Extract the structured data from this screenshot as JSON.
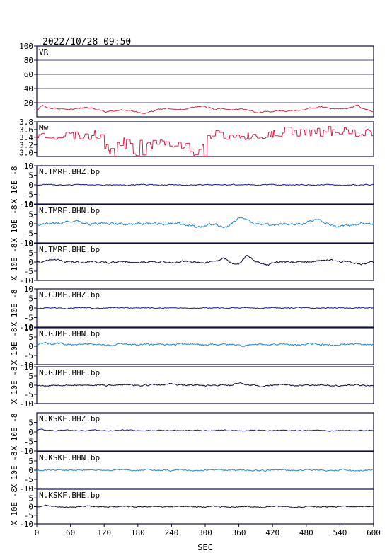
{
  "header": {
    "timestamp": "2022/10/28  09:50"
  },
  "colors": {
    "vr": "#e0204a",
    "mw": "#e0204a",
    "bhz": "#1a1a8c",
    "bhn": "#2a8ad0",
    "bhe": "#111133",
    "frame": "#101040",
    "grid": "#101040",
    "text": "#000000"
  },
  "chart_data": [
    {
      "type": "line",
      "id": "vr",
      "label": "VR",
      "color_key": "vr",
      "ylim": [
        0,
        100
      ],
      "yticks": [
        "100",
        "80",
        "60",
        "40",
        "20"
      ],
      "grid": true,
      "seed": 11,
      "base": 10,
      "amp": 2.5,
      "bumps": [
        [
          10,
          5,
          6
        ],
        [
          330,
          3,
          6
        ],
        [
          570,
          4,
          5
        ]
      ],
      "noise": 1.2
    },
    {
      "type": "line",
      "id": "mw",
      "label": "Mw",
      "color_key": "mw",
      "ylim": [
        2.9,
        3.8
      ],
      "yticks": [
        "3.8",
        "3.6",
        "3.4",
        "3.2",
        "3.0"
      ],
      "grid": false,
      "seed": 23,
      "stepped": true
    },
    {
      "type": "line",
      "id": "tmrf-bhz",
      "label": "N.TMRF.BHZ.bp",
      "color_key": "bhz",
      "ylabel": "X 10E -8",
      "ylim": [
        -10,
        10
      ],
      "yticks": [
        "10",
        "5",
        "0",
        "-5",
        "-10"
      ],
      "seed": 31,
      "amp": 0.35,
      "bumps": []
    },
    {
      "type": "line",
      "id": "tmrf-bhn",
      "label": "N.TMRF.BHN.bp",
      "color_key": "bhn",
      "ylabel": "X 10E -8",
      "ylim": [
        -10,
        10
      ],
      "yticks": [
        "10",
        "5",
        "0",
        "-5",
        "-10"
      ],
      "seed": 37,
      "amp": 0.9,
      "bumps": [
        [
          60,
          1.5,
          18
        ],
        [
          290,
          -1.8,
          18
        ],
        [
          335,
          -1.6,
          12
        ],
        [
          365,
          2.8,
          14
        ],
        [
          420,
          -1.2,
          12
        ],
        [
          500,
          2.6,
          14
        ],
        [
          540,
          -1.6,
          14
        ]
      ]
    },
    {
      "type": "line",
      "id": "tmrf-bhe",
      "label": "N.TMRF.BHE.bp",
      "color_key": "bhe",
      "ylabel": "X 10E -8",
      "ylim": [
        -10,
        10
      ],
      "yticks": [
        "10",
        "5",
        "0",
        "-5",
        "-10"
      ],
      "seed": 41,
      "amp": 0.7,
      "bumps": [
        [
          30,
          1.2,
          14
        ],
        [
          335,
          1.8,
          10
        ],
        [
          350,
          -1.0,
          10
        ],
        [
          375,
          3.0,
          9
        ],
        [
          410,
          -1.2,
          10
        ],
        [
          520,
          1.3,
          14
        ],
        [
          580,
          -1.0,
          12
        ]
      ]
    },
    {
      "type": "line",
      "id": "gjmf-bhz",
      "label": "N.GJMF.BHZ.bp",
      "color_key": "bhz",
      "ylabel": "X 10E -8",
      "ylim": [
        -10,
        10
      ],
      "yticks": [
        "10",
        "5",
        "0",
        "-5",
        "-10"
      ],
      "seed": 43,
      "amp": 0.35,
      "bumps": []
    },
    {
      "type": "line",
      "id": "gjmf-bhn",
      "label": "N.GJMF.BHN.bp",
      "color_key": "bhn",
      "ylabel": "X 10E -8",
      "ylim": [
        -10,
        10
      ],
      "yticks": [
        "10",
        "5",
        "0",
        "-5",
        "-10"
      ],
      "seed": 47,
      "amp": 0.7,
      "offset": 1.0,
      "bumps": [
        [
          15,
          1.0,
          10
        ],
        [
          370,
          -0.9,
          10
        ]
      ]
    },
    {
      "type": "line",
      "id": "gjmf-bhe",
      "label": "N.GJMF.BHE.bp",
      "color_key": "bhe",
      "ylabel": "X 10E -8",
      "ylim": [
        -10,
        10
      ],
      "yticks": [
        "10",
        "5",
        "0",
        "-5",
        "-10"
      ],
      "seed": 53,
      "amp": 0.55,
      "bumps": [
        [
          240,
          1.0,
          10
        ],
        [
          360,
          1.1,
          10
        ],
        [
          400,
          -0.9,
          10
        ]
      ]
    },
    {
      "type": "line",
      "id": "kskf-bhz",
      "label": "N.KSKF.BHZ.bp",
      "color_key": "bhz",
      "ylabel": "X 10E -8",
      "ylim": [
        -10,
        10
      ],
      "yticks": [
        "5",
        "0",
        "-5",
        "-10"
      ],
      "seed": 59,
      "amp": 0.35,
      "offset": 0.8,
      "bumps": [
        [
          10,
          0.5,
          10
        ]
      ]
    },
    {
      "type": "line",
      "id": "kskf-bhn",
      "label": "N.KSKF.BHN.bp",
      "color_key": "bhn",
      "ylabel": "X 10E -8",
      "ylim": [
        -10,
        10
      ],
      "yticks": [
        "5",
        "0",
        "-5",
        "-10"
      ],
      "seed": 61,
      "amp": 0.55,
      "bumps": []
    },
    {
      "type": "line",
      "id": "kskf-bhe",
      "label": "N.KSKF.BHE.bp",
      "color_key": "bhe",
      "ylabel": "X 10E -8",
      "ylim": [
        -10,
        10
      ],
      "yticks": [
        "5",
        "0",
        "-5",
        "-10"
      ],
      "seed": 67,
      "amp": 0.45,
      "bumps": [
        [
          15,
          0.8,
          10
        ]
      ]
    }
  ],
  "xaxis": {
    "label": "SEC",
    "xlim": [
      0,
      600
    ],
    "ticks": [
      "0",
      "60",
      "120",
      "180",
      "240",
      "300",
      "360",
      "420",
      "480",
      "540",
      "600"
    ]
  }
}
